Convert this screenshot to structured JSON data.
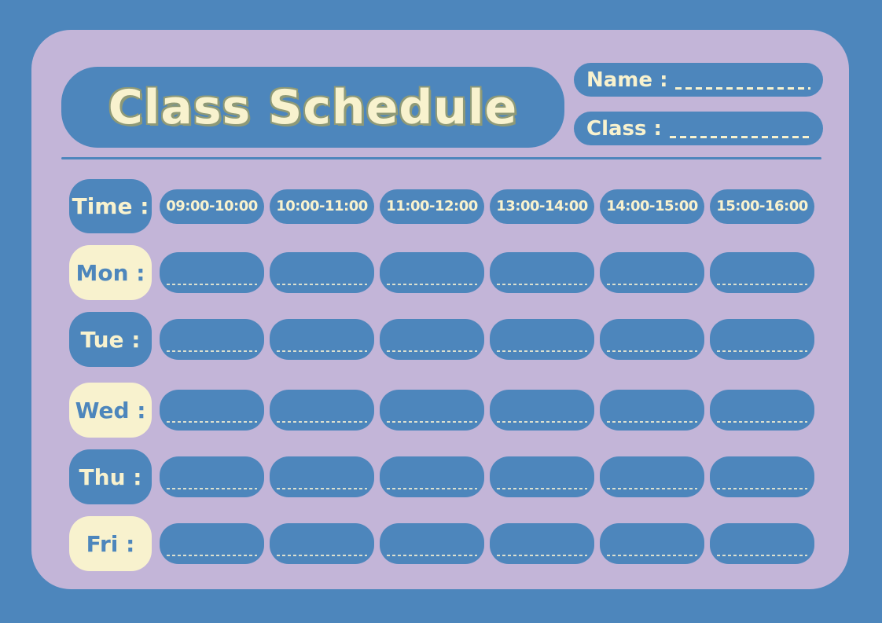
{
  "header": {
    "title": "Class Schedule",
    "name_label": "Name :",
    "class_label": "Class :"
  },
  "schedule": {
    "time_label": "Time :",
    "time_slots": [
      "09:00-10:00",
      "10:00-11:00",
      "11:00-12:00",
      "13:00-14:00",
      "14:00-15:00",
      "15:00-16:00"
    ],
    "days": [
      {
        "label": "Mon :"
      },
      {
        "label": "Tue :"
      },
      {
        "label": "Wed :"
      },
      {
        "label": "Thu :"
      },
      {
        "label": "Fri :"
      }
    ]
  },
  "colors": {
    "frame_blue": "#4d86bc",
    "card_lavender": "#c3b5d8",
    "cream": "#f8f2ce",
    "title_shadow": "#8f9a77"
  }
}
